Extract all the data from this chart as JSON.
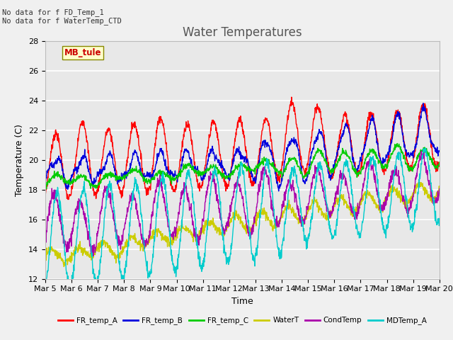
{
  "title": "Water Temperatures",
  "xlabel": "Time",
  "ylabel": "Temperature (C)",
  "ylim": [
    12,
    28
  ],
  "xtick_labels": [
    "Mar 5",
    "Mar 6",
    "Mar 7",
    "Mar 8",
    "Mar 9",
    "Mar 10",
    "Mar 11",
    "Mar 12",
    "Mar 13",
    "Mar 14",
    "Mar 15",
    "Mar 16",
    "Mar 17",
    "Mar 18",
    "Mar 19",
    "Mar 20"
  ],
  "no_data_text": [
    "No data for f FD_Temp_1",
    "No data for f WaterTemp_CTD"
  ],
  "station_label": "MB_tule",
  "legend_entries": [
    "FR_temp_A",
    "FR_temp_B",
    "FR_temp_C",
    "WaterT",
    "CondTemp",
    "MDTemp_A"
  ],
  "line_colors": [
    "#ff0000",
    "#0000dd",
    "#00cc00",
    "#cccc00",
    "#aa00aa",
    "#00cccc"
  ],
  "title_fontsize": 12,
  "axis_fontsize": 9,
  "tick_fontsize": 8,
  "fig_bg": "#f0f0f0",
  "plot_bg": "#e8e8e8",
  "grid_color": "#ffffff"
}
